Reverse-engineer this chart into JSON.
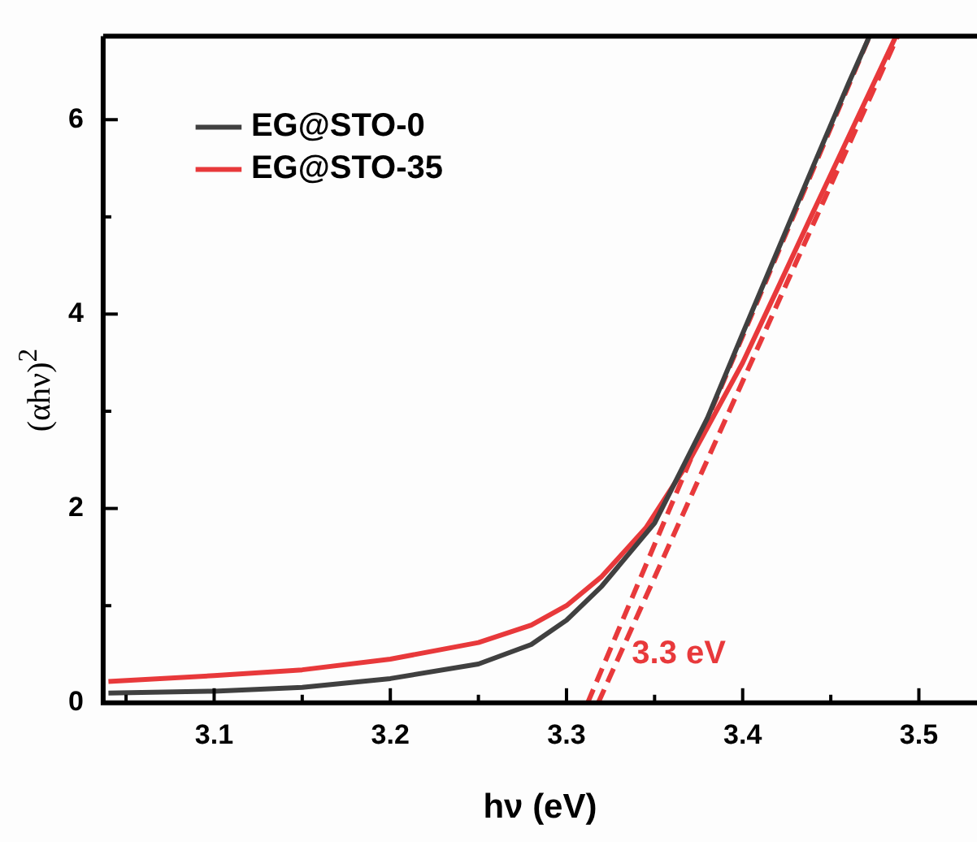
{
  "chart_data": {
    "type": "line",
    "xlabel": "hν (eV)",
    "ylabel": "(αhν)$^{2}$",
    "xlim": [
      3.037,
      3.533
    ],
    "xticks": [
      {
        "value": 3.05,
        "label": null
      },
      3.1,
      {
        "value": 3.15,
        "label": null
      },
      3.2,
      {
        "value": 3.25,
        "label": null
      },
      3.3,
      {
        "value": 3.35,
        "label": null
      },
      3.4,
      {
        "value": 3.45,
        "label": null
      },
      3.5
    ],
    "ylim": [
      0,
      6.86
    ],
    "yticks": [
      0,
      {
        "value": 1,
        "label": null
      },
      2,
      {
        "value": 3,
        "label": null
      },
      4,
      {
        "value": 5,
        "label": null
      },
      6
    ],
    "grid": false,
    "legend": "top left",
    "marker": "none",
    "series": [
      {
        "name": "EG@STO-0",
        "color": "#404040",
        "line_style": "solid",
        "x": [
          3.04,
          3.1,
          3.15,
          3.2,
          3.25,
          3.28,
          3.3,
          3.32,
          3.35,
          3.38,
          3.4,
          3.42,
          3.44,
          3.46,
          3.472
        ],
        "values": [
          0.1,
          0.12,
          0.16,
          0.25,
          0.4,
          0.6,
          0.85,
          1.2,
          1.85,
          2.93,
          3.8,
          4.66,
          5.52,
          6.37,
          6.86
        ]
      },
      {
        "name": "EG@STO-35",
        "color": "#e8393b",
        "line_style": "solid",
        "x": [
          3.04,
          3.1,
          3.15,
          3.2,
          3.25,
          3.28,
          3.3,
          3.32,
          3.345,
          3.37,
          3.4,
          3.42,
          3.44,
          3.46,
          3.487
        ],
        "values": [
          0.22,
          0.28,
          0.34,
          0.45,
          0.62,
          0.8,
          1.0,
          1.3,
          1.8,
          2.5,
          3.5,
          4.27,
          5.05,
          5.82,
          6.86
        ]
      },
      {
        "type": "line",
        "color": "#e8393b",
        "line_style": "dashed",
        "x": [
          3.312,
          3.472
        ],
        "values": [
          0,
          6.86
        ]
      },
      {
        "type": "line",
        "color": "#e8393b",
        "line_style": "dashed",
        "x": [
          3.318,
          3.488
        ],
        "values": [
          0,
          6.86
        ]
      }
    ],
    "annotations": [
      "3.3 eV"
    ]
  }
}
